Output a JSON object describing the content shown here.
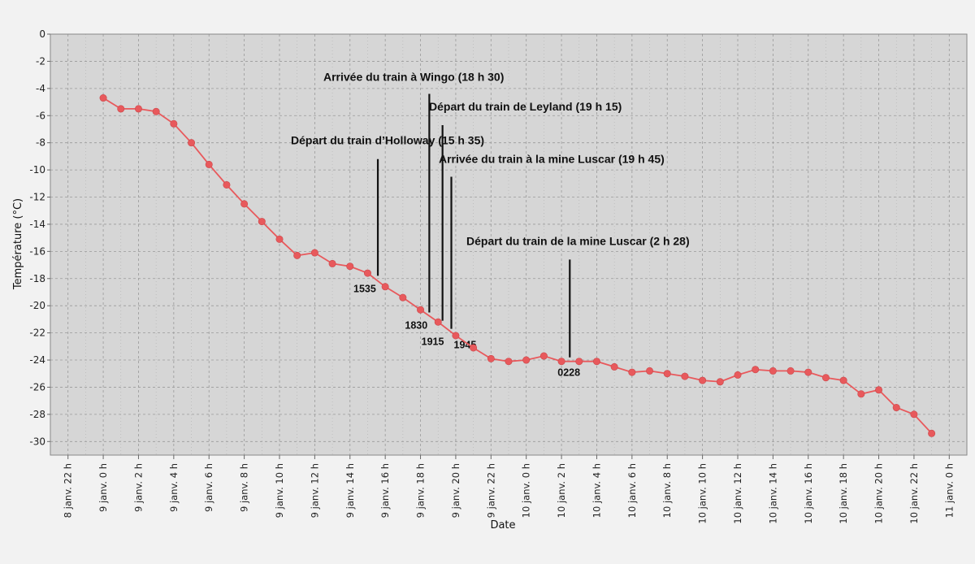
{
  "chart_data": {
    "type": "line",
    "title": "",
    "xlabel": "Date",
    "ylabel": "Température (°C)",
    "ylim": [
      -31,
      0
    ],
    "grid": true,
    "y_ticks": [
      0,
      -2,
      -4,
      -6,
      -8,
      -10,
      -12,
      -14,
      -16,
      -18,
      -20,
      -22,
      -24,
      -26,
      -28,
      -30
    ],
    "x_ticks": [
      {
        "h": -2,
        "label": "8 janv. 22 h"
      },
      {
        "h": 0,
        "label": "9 janv. 0 h"
      },
      {
        "h": 2,
        "label": "9 janv. 2 h"
      },
      {
        "h": 4,
        "label": "9 janv. 4 h"
      },
      {
        "h": 6,
        "label": "9 janv. 6 h"
      },
      {
        "h": 8,
        "label": "9 janv. 8 h"
      },
      {
        "h": 10,
        "label": "9 janv. 10 h"
      },
      {
        "h": 12,
        "label": "9 janv. 12 h"
      },
      {
        "h": 14,
        "label": "9 janv. 14 h"
      },
      {
        "h": 16,
        "label": "9 janv. 16 h"
      },
      {
        "h": 18,
        "label": "9 janv. 18 h"
      },
      {
        "h": 20,
        "label": "9 janv. 20 h"
      },
      {
        "h": 22,
        "label": "9 janv. 22 h"
      },
      {
        "h": 24,
        "label": "10 janv. 0 h"
      },
      {
        "h": 26,
        "label": "10 janv. 2 h"
      },
      {
        "h": 28,
        "label": "10 janv. 4 h"
      },
      {
        "h": 30,
        "label": "10 janv. 6 h"
      },
      {
        "h": 32,
        "label": "10 janv. 8 h"
      },
      {
        "h": 34,
        "label": "10 janv. 10 h"
      },
      {
        "h": 36,
        "label": "10 janv. 12 h"
      },
      {
        "h": 38,
        "label": "10 janv. 14 h"
      },
      {
        "h": 40,
        "label": "10 janv. 16 h"
      },
      {
        "h": 42,
        "label": "10 janv. 18 h"
      },
      {
        "h": 44,
        "label": "10 janv. 20 h"
      },
      {
        "h": 46,
        "label": "10 janv. 22 h"
      },
      {
        "h": 48,
        "label": "11 janv. 0 h"
      }
    ],
    "series": [
      {
        "color": "#e8595c",
        "points": [
          {
            "h": 0,
            "y": -4.7
          },
          {
            "h": 1,
            "y": -5.5
          },
          {
            "h": 2,
            "y": -5.5
          },
          {
            "h": 3,
            "y": -5.7
          },
          {
            "h": 4,
            "y": -6.6
          },
          {
            "h": 5,
            "y": -8.0
          },
          {
            "h": 6,
            "y": -9.6
          },
          {
            "h": 7,
            "y": -11.1
          },
          {
            "h": 8,
            "y": -12.5
          },
          {
            "h": 9,
            "y": -13.8
          },
          {
            "h": 10,
            "y": -15.1
          },
          {
            "h": 11,
            "y": -16.3
          },
          {
            "h": 12,
            "y": -16.1
          },
          {
            "h": 13,
            "y": -16.9
          },
          {
            "h": 14,
            "y": -17.1
          },
          {
            "h": 15,
            "y": -17.6
          },
          {
            "h": 16,
            "y": -18.6
          },
          {
            "h": 17,
            "y": -19.4
          },
          {
            "h": 18,
            "y": -20.3
          },
          {
            "h": 19,
            "y": -21.2
          },
          {
            "h": 20,
            "y": -22.2
          },
          {
            "h": 21,
            "y": -23.1
          },
          {
            "h": 22,
            "y": -23.9
          },
          {
            "h": 23,
            "y": -24.1
          },
          {
            "h": 24,
            "y": -24.0
          },
          {
            "h": 25,
            "y": -23.7
          },
          {
            "h": 26,
            "y": -24.1
          },
          {
            "h": 27,
            "y": -24.1
          },
          {
            "h": 28,
            "y": -24.1
          },
          {
            "h": 29,
            "y": -24.5
          },
          {
            "h": 30,
            "y": -24.9
          },
          {
            "h": 31,
            "y": -24.8
          },
          {
            "h": 32,
            "y": -25.0
          },
          {
            "h": 33,
            "y": -25.2
          },
          {
            "h": 34,
            "y": -25.5
          },
          {
            "h": 35,
            "y": -25.6
          },
          {
            "h": 36,
            "y": -25.1
          },
          {
            "h": 37,
            "y": -24.7
          },
          {
            "h": 38,
            "y": -24.8
          },
          {
            "h": 39,
            "y": -24.8
          },
          {
            "h": 40,
            "y": -24.9
          },
          {
            "h": 41,
            "y": -25.3
          },
          {
            "h": 42,
            "y": -25.5
          },
          {
            "h": 43,
            "y": -26.5
          },
          {
            "h": 44,
            "y": -26.2
          },
          {
            "h": 45,
            "y": -27.5
          },
          {
            "h": 46,
            "y": -28.0
          },
          {
            "h": 47,
            "y": -29.4
          }
        ]
      }
    ],
    "annotations": [
      {
        "h": 15.58,
        "top": -9.2,
        "bottom": -17.8,
        "label": "Départ du train d’Holloway (15 h 35)",
        "time": "1535"
      },
      {
        "h": 18.5,
        "top": -4.4,
        "bottom": -20.5,
        "label": "Arrivée du train à Wingo (18 h 30)",
        "time": "1830"
      },
      {
        "h": 19.25,
        "top": -6.7,
        "bottom": -21.1,
        "label": "Départ du train de Leyland (19 h 15)",
        "time": "1915"
      },
      {
        "h": 19.75,
        "top": -10.5,
        "bottom": -21.7,
        "label": "Arrivée du train à la mine Luscar (19 h 45)",
        "time": "1945"
      },
      {
        "h": 26.47,
        "top": -16.6,
        "bottom": -23.8,
        "label": "Départ du train de la mine Luscar (2 h 28)",
        "time": "0228"
      }
    ]
  }
}
